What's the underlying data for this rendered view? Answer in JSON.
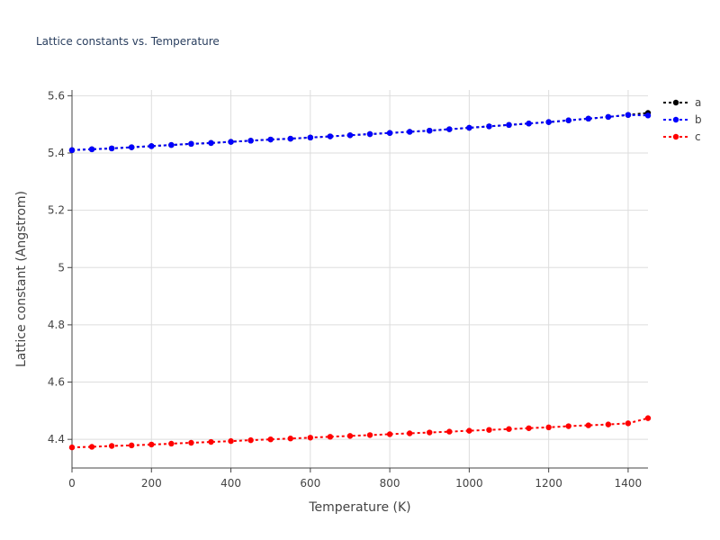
{
  "chart_data": {
    "type": "line",
    "title": "Lattice constants vs. Temperature",
    "xlabel": "Temperature (K)",
    "ylabel": "Lattice constant (Angstrom)",
    "xlim": [
      0,
      1450
    ],
    "ylim": [
      4.3,
      5.62
    ],
    "x_ticks": [
      0,
      200,
      400,
      600,
      800,
      1000,
      1200,
      1400
    ],
    "y_ticks": [
      4.4,
      4.6,
      4.8,
      5,
      5.2,
      5.4,
      5.6
    ],
    "x_tick_labels": [
      "0",
      "200",
      "400",
      "600",
      "800",
      "1000",
      "1200",
      "1400"
    ],
    "y_tick_labels": [
      "4.4",
      "4.6",
      "4.8",
      "5",
      "5.2",
      "5.4",
      "5.6"
    ],
    "grid": true,
    "legend_position": "top-right",
    "x": [
      0,
      50,
      100,
      150,
      200,
      250,
      300,
      350,
      400,
      450,
      500,
      550,
      600,
      650,
      700,
      750,
      800,
      850,
      900,
      950,
      1000,
      1050,
      1100,
      1150,
      1200,
      1250,
      1300,
      1350,
      1400,
      1450
    ],
    "series": [
      {
        "name": "a",
        "color": "#000000",
        "values": [
          5.41,
          5.413,
          5.416,
          5.42,
          5.424,
          5.428,
          5.432,
          5.435,
          5.439,
          5.443,
          5.447,
          5.45,
          5.454,
          5.458,
          5.462,
          5.466,
          5.47,
          5.474,
          5.478,
          5.483,
          5.488,
          5.493,
          5.498,
          5.503,
          5.508,
          5.514,
          5.52,
          5.526,
          5.533,
          5.54
        ]
      },
      {
        "name": "b",
        "color": "#0000ff",
        "values": [
          5.41,
          5.413,
          5.416,
          5.42,
          5.424,
          5.428,
          5.432,
          5.435,
          5.439,
          5.443,
          5.447,
          5.45,
          5.454,
          5.458,
          5.462,
          5.466,
          5.47,
          5.474,
          5.478,
          5.483,
          5.488,
          5.493,
          5.498,
          5.503,
          5.508,
          5.514,
          5.52,
          5.526,
          5.533,
          5.531
        ]
      },
      {
        "name": "c",
        "color": "#ff0000",
        "values": [
          4.372,
          4.374,
          4.377,
          4.379,
          4.382,
          4.385,
          4.388,
          4.391,
          4.394,
          4.397,
          4.4,
          4.403,
          4.406,
          4.409,
          4.412,
          4.415,
          4.418,
          4.421,
          4.424,
          4.427,
          4.43,
          4.433,
          4.436,
          4.439,
          4.442,
          4.446,
          4.449,
          4.452,
          4.456,
          4.474
        ]
      }
    ]
  }
}
